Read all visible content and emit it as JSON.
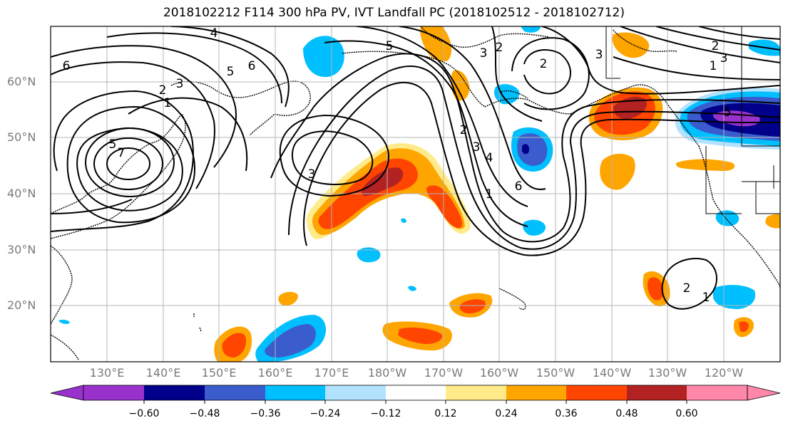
{
  "title": "2018102212 F114 300 hPa PV, IVT Landfall PC (2018102512 - 2018102712)",
  "lat_labels": [
    "60°N",
    "50°N",
    "40°N",
    "30°N",
    "20°N"
  ],
  "lon_labels": [
    "130°E",
    "140°E",
    "150°E",
    "160°E",
    "170°E",
    "180°W",
    "170°W",
    "160°W",
    "150°W",
    "140°W",
    "130°W",
    "120°W"
  ],
  "colorbar": {
    "tick_labels": [
      "−0.60",
      "−0.48",
      "−0.36",
      "−0.24",
      "−0.12",
      "0.12",
      "0.24",
      "0.36",
      "0.48",
      "0.60"
    ],
    "colors": [
      "#9932cc",
      "#00008b",
      "#3a5ccc",
      "#00bfff",
      "#b3e2ff",
      "#ffffff",
      "#ffeb8a",
      "#ffa500",
      "#ff4500",
      "#b22222",
      "#ff88aa"
    ]
  },
  "contour_labels": [
    "4",
    "6",
    "5",
    "3",
    "2",
    "1",
    "7",
    "6",
    "5",
    "3",
    "2",
    "3",
    "3",
    "4",
    "5",
    "6",
    "2",
    "2",
    "3",
    "1",
    "1",
    "2",
    "5",
    "3",
    "1",
    "2"
  ]
}
